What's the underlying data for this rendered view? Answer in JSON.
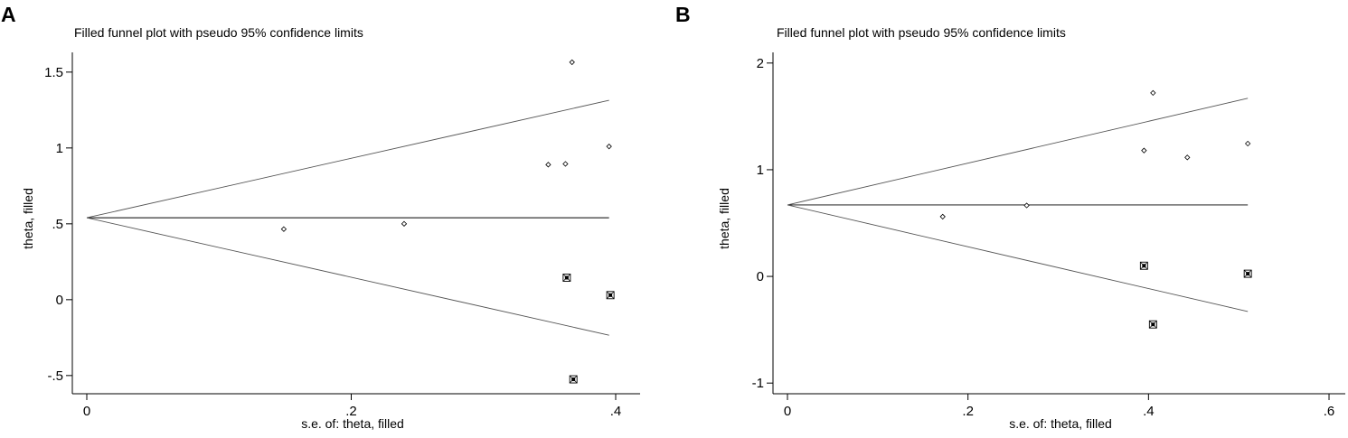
{
  "chart_data": [
    {
      "type": "scatter",
      "panel_label": "A",
      "title": "Filled funnel plot with pseudo 95% confidence limits",
      "xlabel": "s.e. of: theta, filled",
      "ylabel": "theta, filled",
      "xlim": [
        0,
        0.413
      ],
      "ylim": [
        -0.62,
        1.63
      ],
      "xticks": [
        0,
        0.2,
        0.4
      ],
      "xtick_labels": [
        "0",
        ".2",
        ".4"
      ],
      "yticks": [
        -0.5,
        0,
        0.5,
        1,
        1.5
      ],
      "ytick_labels": [
        "-.5",
        "0",
        ".5",
        "1",
        "1.5"
      ],
      "grid": false,
      "legend": "none",
      "pooled_estimate": 0.54,
      "funnel_max_se": 0.395,
      "series": [
        {
          "marker": "diamond",
          "points": [
            {
              "x": 0.149,
              "y": 0.465
            },
            {
              "x": 0.24,
              "y": 0.5
            },
            {
              "x": 0.349,
              "y": 0.89
            },
            {
              "x": 0.362,
              "y": 0.895
            },
            {
              "x": 0.367,
              "y": 1.565
            },
            {
              "x": 0.395,
              "y": 1.01
            }
          ]
        },
        {
          "marker": "filled-square",
          "points": [
            {
              "x": 0.363,
              "y": 0.145
            },
            {
              "x": 0.396,
              "y": 0.03
            },
            {
              "x": 0.368,
              "y": -0.525
            }
          ]
        }
      ]
    },
    {
      "type": "scatter",
      "panel_label": "B",
      "title": "Filled funnel plot with pseudo 95% confidence limits",
      "xlabel": "s.e. of: theta, filled",
      "ylabel": "theta, filled",
      "xlim": [
        0,
        0.61
      ],
      "ylim": [
        -1.1,
        2.1
      ],
      "xticks": [
        0,
        0.2,
        0.4,
        0.6
      ],
      "xtick_labels": [
        "0",
        ".2",
        ".4",
        ".6"
      ],
      "yticks": [
        -1,
        0,
        1,
        2
      ],
      "ytick_labels": [
        "-1",
        "0",
        "1",
        "2"
      ],
      "grid": false,
      "legend": "none",
      "pooled_estimate": 0.67,
      "funnel_max_se": 0.51,
      "series": [
        {
          "marker": "diamond",
          "points": [
            {
              "x": 0.172,
              "y": 0.56
            },
            {
              "x": 0.265,
              "y": 0.665
            },
            {
              "x": 0.395,
              "y": 1.18
            },
            {
              "x": 0.405,
              "y": 1.72
            },
            {
              "x": 0.443,
              "y": 1.115
            },
            {
              "x": 0.51,
              "y": 1.245
            }
          ]
        },
        {
          "marker": "filled-square",
          "points": [
            {
              "x": 0.395,
              "y": 0.1
            },
            {
              "x": 0.405,
              "y": -0.45
            },
            {
              "x": 0.51,
              "y": 0.025
            }
          ]
        }
      ]
    }
  ]
}
